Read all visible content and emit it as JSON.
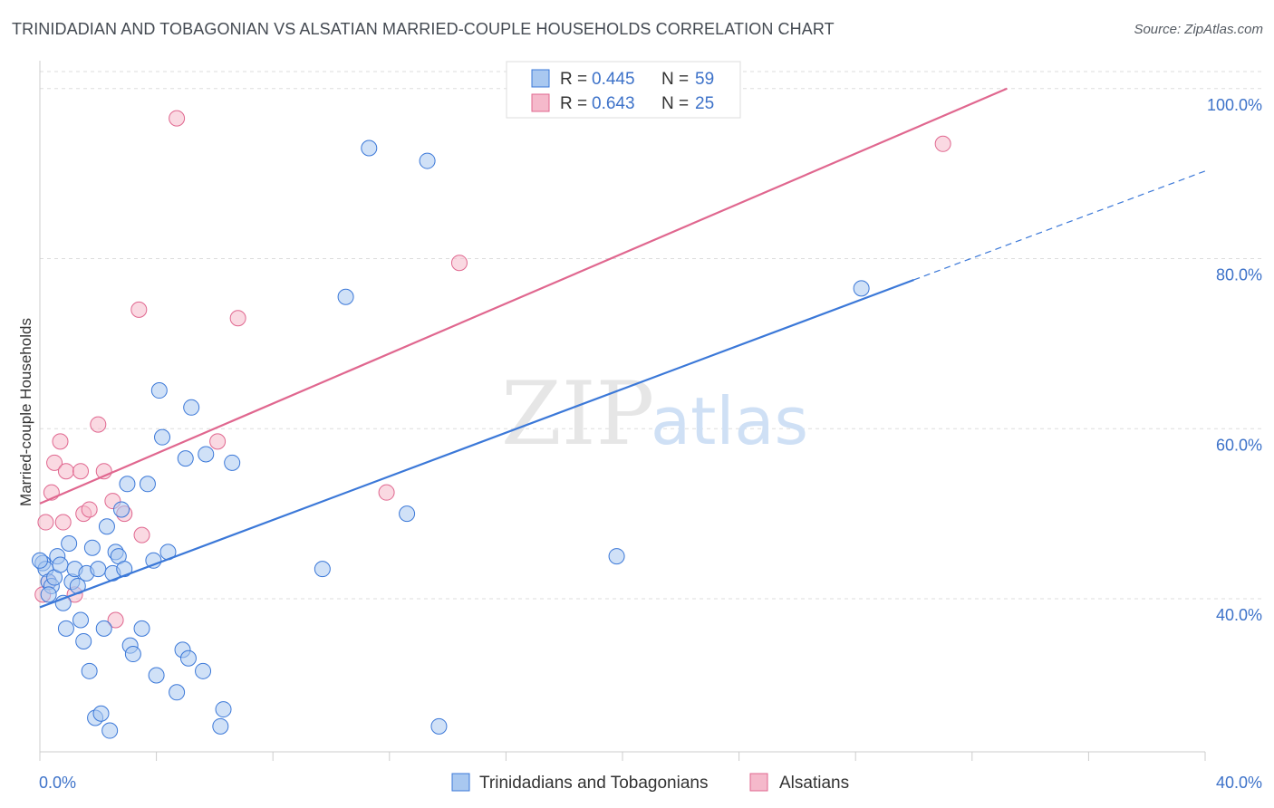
{
  "title": "TRINIDADIAN AND TOBAGONIAN VS ALSATIAN MARRIED-COUPLE HOUSEHOLDS CORRELATION CHART",
  "source": "Source: ZipAtlas.com",
  "watermark": {
    "zip": "ZIP",
    "atlas": "atlas"
  },
  "colors": {
    "blue": "#3b78d8",
    "blue_fill": "#a9c8f0",
    "pink": "#e0678f",
    "pink_fill": "#f5b9cb",
    "axis_text": "#3d72c9",
    "grid": "#dddddd"
  },
  "legend": {
    "rows": [
      {
        "r_label": "R =",
        "r_value": "0.445",
        "n_label": "N =",
        "n_value": "59",
        "color": "blue"
      },
      {
        "r_label": "R =",
        "r_value": "0.643",
        "n_label": "N =",
        "n_value": "25",
        "color": "pink"
      }
    ]
  },
  "bottom_legend": [
    "Trinidadians and Tobagonians",
    "Alsatians"
  ],
  "chart_data": {
    "type": "scatter",
    "title": "TRINIDADIAN AND TOBAGONIAN VS ALSATIAN MARRIED-COUPLE HOUSEHOLDS CORRELATION CHART",
    "xlabel": "",
    "ylabel": "Married-couple Households",
    "xlim": [
      0,
      40
    ],
    "ylim": [
      22,
      102
    ],
    "x_tick_labels": [
      "0.0%",
      "40.0%"
    ],
    "y_ticks": [
      40,
      60,
      80,
      100
    ],
    "y_tick_labels": [
      "40.0%",
      "60.0%",
      "80.0%",
      "100.0%"
    ],
    "grid": true,
    "series": [
      {
        "name": "Trinidadians and Tobagonians",
        "color": "blue",
        "R": 0.445,
        "N": 59,
        "trend": {
          "x0": 0,
          "y0": 39.0,
          "x1": 30,
          "y1": 77.5,
          "dash_to_x": 40,
          "dash_to_y": 90.3
        },
        "points": [
          [
            0.1,
            44.2
          ],
          [
            0.2,
            43.5
          ],
          [
            0.3,
            42.0
          ],
          [
            0.4,
            41.5
          ],
          [
            0.5,
            42.5
          ],
          [
            0.6,
            45.0
          ],
          [
            0.7,
            44.0
          ],
          [
            0.8,
            39.5
          ],
          [
            0.9,
            36.5
          ],
          [
            1.0,
            46.5
          ],
          [
            1.1,
            42.0
          ],
          [
            1.2,
            43.5
          ],
          [
            1.3,
            41.5
          ],
          [
            1.4,
            37.5
          ],
          [
            1.5,
            35.0
          ],
          [
            1.6,
            43.0
          ],
          [
            1.7,
            31.5
          ],
          [
            1.8,
            46.0
          ],
          [
            1.9,
            26.0
          ],
          [
            2.0,
            43.5
          ],
          [
            2.1,
            26.5
          ],
          [
            2.2,
            36.5
          ],
          [
            2.3,
            48.5
          ],
          [
            2.4,
            24.5
          ],
          [
            2.5,
            43.0
          ],
          [
            2.6,
            45.5
          ],
          [
            2.7,
            45.0
          ],
          [
            2.8,
            50.5
          ],
          [
            2.9,
            43.5
          ],
          [
            3.0,
            53.5
          ],
          [
            3.1,
            34.5
          ],
          [
            3.2,
            33.5
          ],
          [
            3.5,
            36.5
          ],
          [
            3.7,
            53.5
          ],
          [
            3.9,
            44.5
          ],
          [
            4.0,
            31.0
          ],
          [
            4.1,
            64.5
          ],
          [
            4.2,
            59.0
          ],
          [
            4.4,
            45.5
          ],
          [
            4.7,
            29.0
          ],
          [
            4.9,
            34.0
          ],
          [
            5.0,
            56.5
          ],
          [
            5.1,
            33.0
          ],
          [
            5.2,
            62.5
          ],
          [
            5.6,
            31.5
          ],
          [
            5.7,
            57.0
          ],
          [
            6.2,
            25.0
          ],
          [
            6.3,
            27.0
          ],
          [
            6.6,
            56.0
          ],
          [
            9.7,
            43.5
          ],
          [
            10.5,
            75.5
          ],
          [
            11.3,
            93.0
          ],
          [
            12.6,
            50.0
          ],
          [
            13.3,
            91.5
          ],
          [
            13.7,
            25.0
          ],
          [
            19.8,
            45.0
          ],
          [
            28.2,
            76.5
          ],
          [
            0.0,
            44.5
          ],
          [
            0.3,
            40.5
          ]
        ]
      },
      {
        "name": "Alsatians",
        "color": "pink",
        "R": 0.643,
        "N": 25,
        "trend": {
          "x0": 0,
          "y0": 51.2,
          "x1": 33.2,
          "y1": 100.0
        },
        "points": [
          [
            0.1,
            40.5
          ],
          [
            0.2,
            49.0
          ],
          [
            0.3,
            42.0
          ],
          [
            0.4,
            52.5
          ],
          [
            0.5,
            56.0
          ],
          [
            0.7,
            58.5
          ],
          [
            0.8,
            49.0
          ],
          [
            0.9,
            55.0
          ],
          [
            1.2,
            40.5
          ],
          [
            1.4,
            55.0
          ],
          [
            1.5,
            50.0
          ],
          [
            1.7,
            50.5
          ],
          [
            2.0,
            60.5
          ],
          [
            2.2,
            55.0
          ],
          [
            2.5,
            51.5
          ],
          [
            2.6,
            37.5
          ],
          [
            2.9,
            50.0
          ],
          [
            3.4,
            74.0
          ],
          [
            3.5,
            47.5
          ],
          [
            4.7,
            96.5
          ],
          [
            6.1,
            58.5
          ],
          [
            6.8,
            73.0
          ],
          [
            11.9,
            52.5
          ],
          [
            14.4,
            79.5
          ],
          [
            31.0,
            93.5
          ]
        ]
      }
    ]
  }
}
